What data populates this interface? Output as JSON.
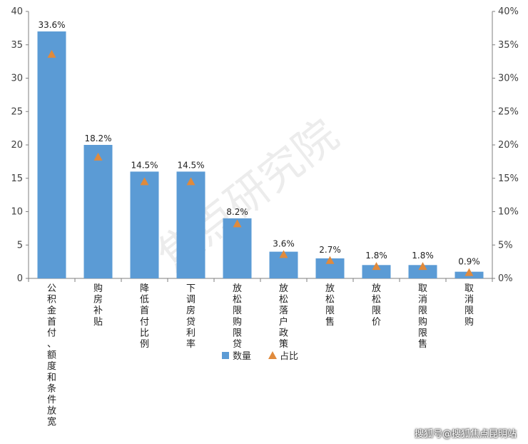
{
  "chart_data": {
    "type": "bar",
    "categories": [
      "公积金首付、额度和条件放宽",
      "购房补贴",
      "降低首付比例",
      "下调房贷利率",
      "放松限购限贷",
      "放松落户政策",
      "放松限售",
      "放松限价",
      "取消限购限售",
      "取消限购"
    ],
    "series": [
      {
        "name": "数量",
        "type": "bar",
        "axis": "left",
        "values": [
          37,
          20,
          16,
          16,
          9,
          4,
          3,
          2,
          2,
          1
        ],
        "color": "#5B9BD5"
      },
      {
        "name": "占比",
        "type": "marker",
        "axis": "right",
        "values": [
          0.336,
          0.182,
          0.145,
          0.145,
          0.082,
          0.036,
          0.027,
          0.018,
          0.018,
          0.009
        ],
        "labels": [
          "33.6%",
          "18.2%",
          "14.5%",
          "14.5%",
          "8.2%",
          "3.6%",
          "2.7%",
          "1.8%",
          "1.8%",
          "0.9%"
        ],
        "color": "#E08A3C"
      }
    ],
    "y_left": {
      "ylim": [
        0,
        40
      ],
      "ticks": [
        "0",
        "5",
        "10",
        "15",
        "20",
        "25",
        "30",
        "35",
        "40"
      ]
    },
    "y_right": {
      "ylim": [
        0,
        0.4
      ],
      "ticks": [
        "0%",
        "5%",
        "10%",
        "15%",
        "20%",
        "25%",
        "30%",
        "35%",
        "40%"
      ]
    },
    "legend": {
      "position": "bottom"
    },
    "grid": false
  },
  "watermark": "焦点研究院",
  "source_text": "搜狐号@搜狐焦点昆明站"
}
